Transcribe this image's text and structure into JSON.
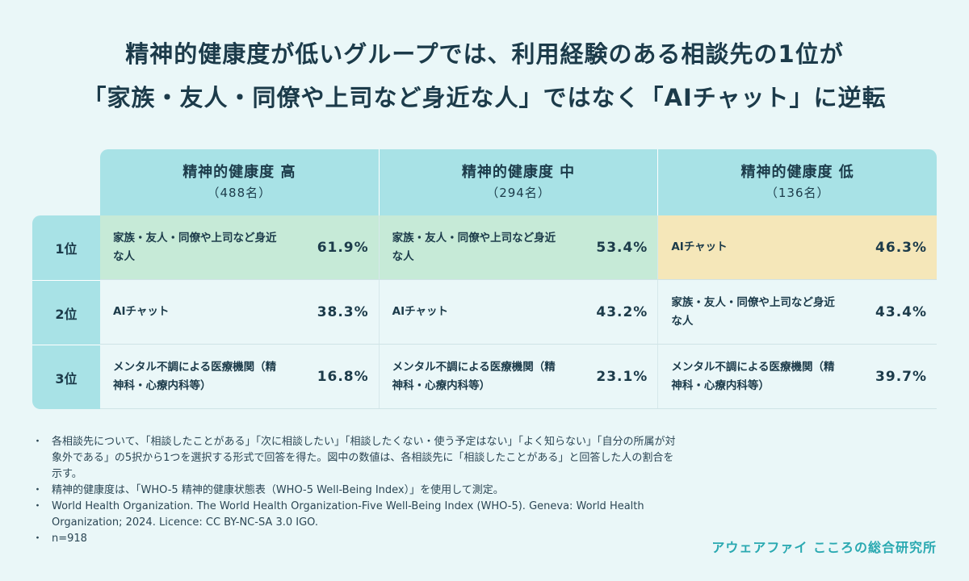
{
  "title": {
    "line1": "精神的健康度が低いグループでは、利用経験のある相談先の1位が",
    "line2": "「家族・友人・同僚や上司など身近な人」ではなく「AIチャット」に逆転"
  },
  "chart_data": {
    "type": "table",
    "columns": [
      {
        "label": "精神的健康度 高",
        "n": "（488名）"
      },
      {
        "label": "精神的健康度 中",
        "n": "（294名）"
      },
      {
        "label": "精神的健康度 低",
        "n": "（136名）"
      }
    ],
    "ranks": [
      "1位",
      "2位",
      "3位"
    ],
    "rows": [
      [
        {
          "label": "家族・友人・同僚や上司など身近な人",
          "value": "61.9%"
        },
        {
          "label": "家族・友人・同僚や上司など身近な人",
          "value": "53.4%"
        },
        {
          "label": "AIチャット",
          "value": "46.3%"
        }
      ],
      [
        {
          "label": "AIチャット",
          "value": "38.3%"
        },
        {
          "label": "AIチャット",
          "value": "43.2%"
        },
        {
          "label": "家族・友人・同僚や上司など身近な人",
          "value": "43.4%"
        }
      ],
      [
        {
          "label": "メンタル不調による医療機関（精神科・心療内科等）",
          "value": "16.8%"
        },
        {
          "label": "メンタル不調による医療機関（精神科・心療内科等）",
          "value": "23.1%"
        },
        {
          "label": "メンタル不調による医療機関（精神科・心療内科等）",
          "value": "39.7%"
        }
      ]
    ]
  },
  "notes": [
    "各相談先について、「相談したことがある」「次に相談したい」「相談したくない・使う予定はない」「よく知らない」「自分の所属が対象外である」の5択から1つを選択する形式で回答を得た。図中の数値は、各相談先に「相談したことがある」と回答した人の割合を示す。",
    "精神的健康度は、「WHO-5 精神的健康状態表（WHO-5 Well-Being Index）」を使用して測定。",
    "World Health Organization. The World Health Organization-Five Well-Being Index (WHO-5). Geneva: World Health Organization; 2024. Licence: CC BY-NC-SA 3.0 IGO.",
    "n=918"
  ],
  "brand": "アウェアファイ こころの総合研究所",
  "colors": {
    "background": "#eaf7f8",
    "header": "#a8e2e6",
    "highlight_family": "#c6ead7",
    "highlight_ai": "#f5e7b9",
    "brand": "#2aa9b1"
  }
}
